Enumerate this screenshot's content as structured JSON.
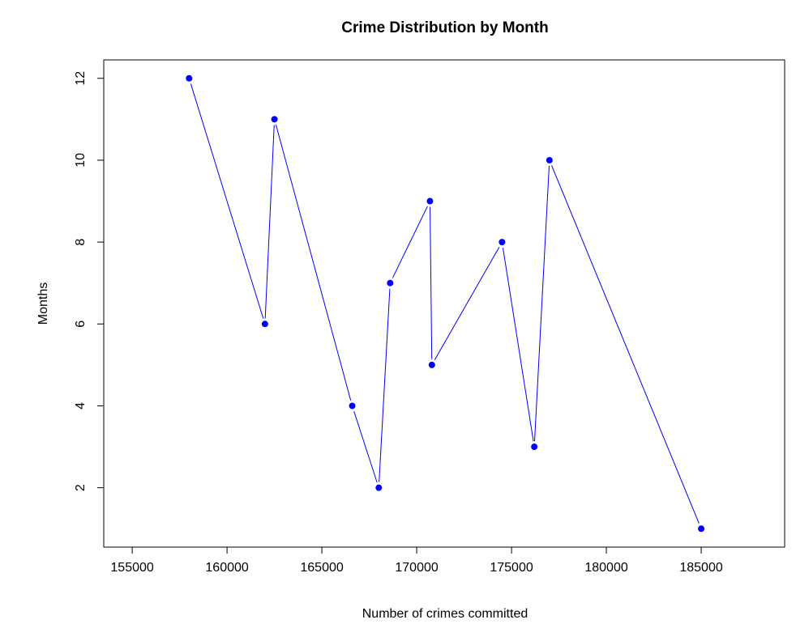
{
  "chart_data": {
    "type": "line",
    "title": "Crime Distribution by Month",
    "xlabel": "Number of crimes committed",
    "ylabel": "Months",
    "xlim": [
      153500,
      189400
    ],
    "ylim": [
      0.55,
      12.45
    ],
    "x_ticks": [
      155000,
      160000,
      165000,
      170000,
      175000,
      180000,
      185000
    ],
    "y_ticks": [
      2,
      4,
      6,
      8,
      10,
      12
    ],
    "grid": false,
    "legend": "none",
    "series": [
      {
        "color": "#0000ff",
        "marker": "filled-circle",
        "x": [
          158000,
          162000,
          162500,
          166600,
          168000,
          168600,
          170700,
          170800,
          174500,
          176200,
          177000,
          185000
        ],
        "y": [
          12,
          6,
          11,
          4,
          2,
          7,
          9,
          5,
          8,
          3,
          10,
          1
        ]
      }
    ]
  }
}
